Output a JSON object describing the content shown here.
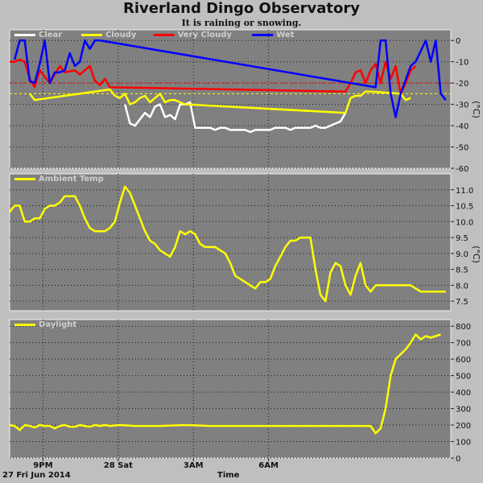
{
  "title": "Riverland Dingo Observatory",
  "subtitle": "It is raining or snowing.",
  "footer": {
    "date": "27 Fri Jun 2014",
    "xlabel": "Time"
  },
  "colors": {
    "plot_bg": "#808080",
    "frame_bg": "#bfbfbf",
    "grid": "#1a1a1a",
    "clear": "#ffffff",
    "cloudy": "#ffff00",
    "very_cloudy": "#ff0000",
    "wet": "#0000ff",
    "temp": "#ffff00",
    "daylight": "#ffff00"
  },
  "chart_data": [
    {
      "type": "line",
      "legend": [
        "Clear",
        "Cloudy",
        "Very Cloudy",
        "Wet"
      ],
      "ylabel": "(°C)",
      "ylim": [
        -60,
        5
      ],
      "yticks": [
        "0",
        "-10",
        "-20",
        "-30",
        "-40",
        "-50",
        "-60"
      ],
      "x_ticks": [
        "9PM",
        "28 Sat",
        "3AM",
        "6AM"
      ],
      "thresholds": [
        -20,
        -25
      ],
      "series": [
        {
          "name": "Clear",
          "x": [
            4.6,
            4.8,
            5.0,
            5.2,
            5.4,
            5.6,
            5.8,
            6.0,
            6.2,
            6.4,
            6.6,
            6.8,
            7.0,
            7.2,
            7.4,
            7.6,
            7.8,
            8.0,
            8.2,
            8.4,
            8.6,
            8.8,
            9.0,
            9.2,
            9.4,
            9.6,
            9.8,
            10.0,
            10.2,
            10.4,
            10.6,
            10.8,
            11.0,
            11.2,
            11.4,
            11.6,
            11.8,
            12.0,
            12.2,
            12.4,
            12.6,
            12.8,
            13.0,
            13.2,
            13.4
          ],
          "values": [
            -30,
            -39,
            -40,
            -37,
            -34,
            -36,
            -31,
            -30,
            -36,
            -35,
            -37,
            -30,
            -30,
            -29,
            -41,
            -41,
            -41,
            -41,
            -42,
            -41,
            -41,
            -42,
            -42,
            -42,
            -42,
            -43,
            -42,
            -42,
            -42,
            -42,
            -41,
            -41,
            -41,
            -42,
            -41,
            -41,
            -41,
            -41,
            -40,
            -41,
            -41,
            -40,
            -39,
            -38,
            -34
          ]
        },
        {
          "name": "Cloudy",
          "x": [
            0.8,
            1.0,
            4.0,
            4.2,
            4.4,
            4.6,
            4.8,
            5.0,
            5.2,
            5.4,
            5.6,
            5.8,
            6.0,
            6.2,
            6.4,
            6.6,
            6.8,
            7.0,
            13.4,
            13.6,
            13.8,
            14.0,
            14.2,
            14.4,
            15.6,
            15.8,
            16.0
          ],
          "values": [
            -25,
            -28,
            -23,
            -26,
            -27,
            -25,
            -30,
            -29,
            -27,
            -26,
            -29,
            -27,
            -25,
            -29,
            -28,
            -28,
            -29,
            -30,
            -34,
            -27,
            -26,
            -26,
            -24,
            -24,
            -25,
            -28,
            -27
          ]
        },
        {
          "name": "Very Cloudy",
          "x": [
            0.0,
            0.2,
            0.4,
            0.6,
            0.8,
            1.0,
            1.2,
            1.6,
            1.8,
            2.0,
            2.2,
            2.6,
            2.8,
            3.0,
            3.2,
            3.4,
            3.6,
            3.8,
            4.0,
            13.4,
            13.6,
            13.8,
            14.0,
            14.2,
            14.4,
            14.6,
            14.8,
            15.0,
            15.2,
            15.4,
            15.6,
            15.8,
            16.0,
            16.2
          ],
          "values": [
            -10,
            -10,
            -9,
            -10,
            -18,
            -22,
            -14,
            -20,
            -16,
            -12,
            -15,
            -14,
            -16,
            -14,
            -12,
            -19,
            -21,
            -18,
            -22,
            -24,
            -20,
            -15,
            -14,
            -20,
            -14,
            -11,
            -20,
            -10,
            -18,
            -12,
            -25,
            -20,
            -14,
            -12
          ]
        },
        {
          "name": "Wet",
          "x": [
            0.2,
            0.4,
            0.6,
            0.8,
            1.0,
            1.2,
            1.4,
            1.6,
            1.8,
            2.0,
            2.2,
            2.4,
            2.6,
            2.8,
            3.0,
            3.2,
            3.4,
            3.6,
            14.6,
            14.8,
            15.0,
            15.2,
            15.4,
            15.6,
            16.0,
            16.2,
            16.4,
            16.6,
            16.8,
            17.0,
            17.2,
            17.4
          ],
          "values": [
            -9,
            0,
            0,
            -19,
            -20,
            -11,
            0,
            -20,
            -15,
            -15,
            -14,
            -6,
            -12,
            -10,
            0,
            -4,
            0,
            0,
            -22,
            0,
            0,
            -25,
            -36,
            -25,
            -12,
            -10,
            -5,
            0,
            -10,
            0,
            -25,
            -28
          ]
        }
      ]
    },
    {
      "type": "line",
      "legend": [
        "Ambient Temp"
      ],
      "ylabel": "(°C)",
      "ylim": [
        7.2,
        11.5
      ],
      "yticks": [
        "11.0",
        "10.5",
        "10.0",
        "9.5",
        "9.0",
        "8.5",
        "8.0",
        "7.5"
      ],
      "x_ticks": [
        "9PM",
        "28 Sat",
        "3AM",
        "6AM"
      ],
      "series": [
        {
          "name": "Ambient Temp",
          "x": [
            0.0,
            0.2,
            0.4,
            0.6,
            0.8,
            1.0,
            1.2,
            1.4,
            1.6,
            1.8,
            2.0,
            2.2,
            2.4,
            2.6,
            2.8,
            3.0,
            3.2,
            3.4,
            3.6,
            3.8,
            4.0,
            4.2,
            4.4,
            4.6,
            4.8,
            5.0,
            5.2,
            5.4,
            5.6,
            5.8,
            6.0,
            6.2,
            6.4,
            6.6,
            6.8,
            7.0,
            7.2,
            7.4,
            7.6,
            7.8,
            8.0,
            8.2,
            8.4,
            8.6,
            8.8,
            9.0,
            9.2,
            9.4,
            9.6,
            9.8,
            10.0,
            10.2,
            10.4,
            10.6,
            10.8,
            11.0,
            11.2,
            11.4,
            11.6,
            11.8,
            12.0,
            12.2,
            12.4,
            12.6,
            12.8,
            13.0,
            13.2,
            13.4,
            13.6,
            13.8,
            14.0,
            14.2,
            14.4,
            14.6,
            14.8,
            15.0,
            15.2,
            15.4,
            15.6,
            15.8,
            16.0,
            16.2,
            16.4,
            16.6,
            16.8,
            17.0,
            17.2,
            17.4
          ],
          "values": [
            10.3,
            10.5,
            10.5,
            10.0,
            10.0,
            10.1,
            10.1,
            10.4,
            10.5,
            10.5,
            10.6,
            10.8,
            10.8,
            10.8,
            10.5,
            10.1,
            9.8,
            9.7,
            9.7,
            9.7,
            9.8,
            10.0,
            10.6,
            11.1,
            10.9,
            10.5,
            10.1,
            9.7,
            9.4,
            9.3,
            9.1,
            9.0,
            8.9,
            9.2,
            9.7,
            9.6,
            9.7,
            9.6,
            9.3,
            9.2,
            9.2,
            9.2,
            9.1,
            9.0,
            8.7,
            8.3,
            8.2,
            8.1,
            8.0,
            7.9,
            8.1,
            8.1,
            8.2,
            8.6,
            8.9,
            9.2,
            9.4,
            9.4,
            9.5,
            9.5,
            9.5,
            8.5,
            7.7,
            7.5,
            8.4,
            8.7,
            8.6,
            8.0,
            7.7,
            8.3,
            8.7,
            8.0,
            7.8,
            8.0,
            8.0,
            8.0,
            8.0,
            8.0,
            8.0,
            8.0,
            8.0,
            7.9,
            7.8,
            7.8,
            7.8,
            7.8,
            7.8,
            7.8
          ]
        }
      ]
    },
    {
      "type": "line",
      "legend": [
        "Daylight"
      ],
      "ylim": [
        0,
        840
      ],
      "yticks": [
        "800",
        "700",
        "600",
        "500",
        "400",
        "300",
        "200",
        "100",
        "0"
      ],
      "x_ticks": [
        "9PM",
        "28 Sat",
        "3AM",
        "6AM"
      ],
      "series": [
        {
          "name": "Daylight",
          "x": [
            0.0,
            0.2,
            0.4,
            0.6,
            0.8,
            1.0,
            1.2,
            1.4,
            1.6,
            1.8,
            2.0,
            2.2,
            2.4,
            2.6,
            2.8,
            3.0,
            3.2,
            3.4,
            3.6,
            3.8,
            4.0,
            4.4,
            5.0,
            6.0,
            7.0,
            8.0,
            9.0,
            10.0,
            11.0,
            12.0,
            13.0,
            14.0,
            14.4,
            14.6,
            14.8,
            15.0,
            15.2,
            15.4,
            15.6,
            15.8,
            16.0,
            16.2,
            16.4,
            16.6,
            16.8,
            17.0,
            17.2
          ],
          "values": [
            200,
            195,
            170,
            200,
            195,
            185,
            200,
            195,
            195,
            180,
            195,
            200,
            190,
            190,
            200,
            195,
            190,
            200,
            195,
            200,
            195,
            200,
            195,
            195,
            200,
            195,
            195,
            195,
            195,
            195,
            195,
            195,
            195,
            150,
            180,
            300,
            500,
            600,
            630,
            660,
            700,
            750,
            720,
            740,
            730,
            740,
            750
          ]
        }
      ]
    }
  ]
}
